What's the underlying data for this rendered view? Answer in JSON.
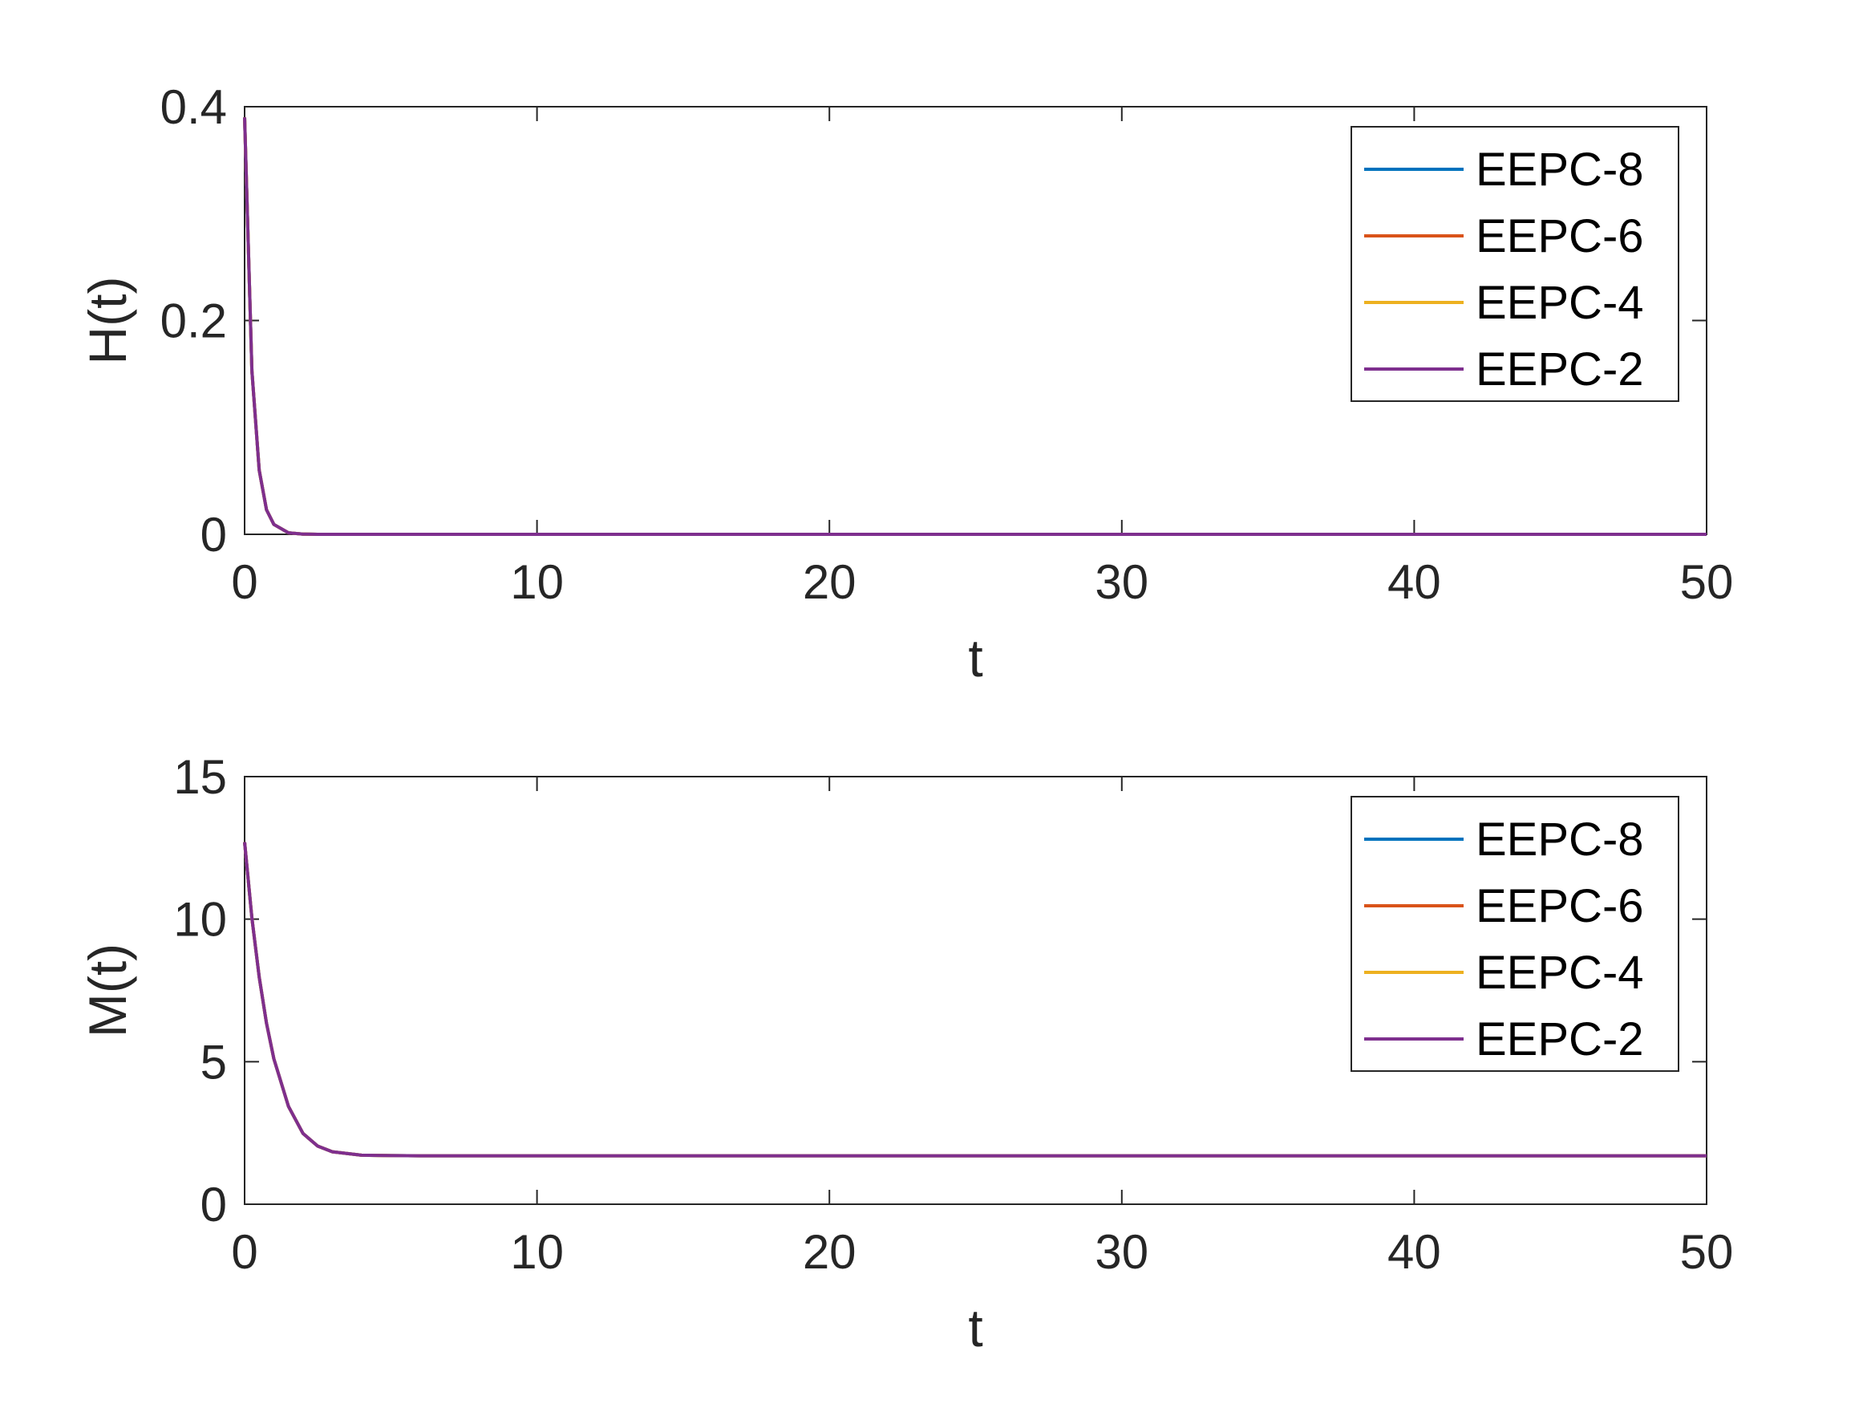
{
  "chart_data": [
    {
      "type": "line",
      "ylabel": "H(t)",
      "xlabel": "t",
      "xlim": [
        0,
        50
      ],
      "ylim": [
        0,
        0.4
      ],
      "xticks": [
        "0",
        "10",
        "20",
        "30",
        "40",
        "50"
      ],
      "yticks": [
        "0",
        "0.2",
        "0.4"
      ],
      "grid": false,
      "legend_position": "top-right",
      "series": [
        {
          "name": "EEPC-8",
          "color": "#0072BD",
          "x": [
            0,
            0.25,
            0.5,
            0.75,
            1,
            1.5,
            2,
            2.5,
            3,
            4,
            5,
            7,
            10,
            15,
            20,
            30,
            40,
            50
          ],
          "y": [
            0.39,
            0.153,
            0.06,
            0.023,
            0.0092,
            0.0014,
            0.0002,
            3e-05,
            0,
            0,
            0,
            0,
            0,
            0,
            0,
            0,
            0,
            0
          ]
        },
        {
          "name": "EEPC-6",
          "color": "#D95319",
          "x": [
            0,
            0.25,
            0.5,
            0.75,
            1,
            1.5,
            2,
            2.5,
            3,
            4,
            5,
            7,
            10,
            15,
            20,
            30,
            40,
            50
          ],
          "y": [
            0.39,
            0.153,
            0.06,
            0.023,
            0.0092,
            0.0014,
            0.0002,
            3e-05,
            0,
            0,
            0,
            0,
            0,
            0,
            0,
            0,
            0,
            0
          ]
        },
        {
          "name": "EEPC-4",
          "color": "#EDB120",
          "x": [
            0,
            0.25,
            0.5,
            0.75,
            1,
            1.5,
            2,
            2.5,
            3,
            4,
            5,
            7,
            10,
            15,
            20,
            30,
            40,
            50
          ],
          "y": [
            0.39,
            0.153,
            0.06,
            0.023,
            0.0092,
            0.0014,
            0.0002,
            3e-05,
            0,
            0,
            0,
            0,
            0,
            0,
            0,
            0,
            0,
            0
          ]
        },
        {
          "name": "EEPC-2",
          "color": "#7E2F8E",
          "x": [
            0,
            0.25,
            0.5,
            0.75,
            1,
            1.5,
            2,
            2.5,
            3,
            4,
            5,
            7,
            10,
            15,
            20,
            30,
            40,
            50
          ],
          "y": [
            0.39,
            0.153,
            0.06,
            0.023,
            0.0092,
            0.0014,
            0.0002,
            3e-05,
            0,
            0,
            0,
            0,
            0,
            0,
            0,
            0,
            0,
            0
          ]
        }
      ]
    },
    {
      "type": "line",
      "ylabel": "M(t)",
      "xlabel": "t",
      "xlim": [
        0,
        50
      ],
      "ylim": [
        0,
        15
      ],
      "xticks": [
        "0",
        "10",
        "20",
        "30",
        "40",
        "50"
      ],
      "yticks": [
        "0",
        "5",
        "10",
        "15"
      ],
      "grid": false,
      "legend_position": "top-right",
      "series": [
        {
          "name": "EEPC-8",
          "color": "#0072BD",
          "x": [
            0,
            0.25,
            0.5,
            0.75,
            1,
            1.5,
            2,
            2.5,
            3,
            4,
            5,
            6,
            8,
            10,
            20,
            30,
            40,
            50
          ],
          "y": [
            12.7,
            10.04,
            7.97,
            6.35,
            5.1,
            3.43,
            2.48,
            2.04,
            1.84,
            1.72,
            1.705,
            1.701,
            1.7,
            1.7,
            1.7,
            1.7,
            1.7,
            1.7
          ]
        },
        {
          "name": "EEPC-6",
          "color": "#D95319",
          "x": [
            0,
            0.25,
            0.5,
            0.75,
            1,
            1.5,
            2,
            2.5,
            3,
            4,
            5,
            6,
            8,
            10,
            20,
            30,
            40,
            50
          ],
          "y": [
            12.7,
            10.04,
            7.97,
            6.35,
            5.1,
            3.43,
            2.48,
            2.04,
            1.84,
            1.72,
            1.705,
            1.701,
            1.7,
            1.7,
            1.7,
            1.7,
            1.7,
            1.7
          ]
        },
        {
          "name": "EEPC-4",
          "color": "#EDB120",
          "x": [
            0,
            0.25,
            0.5,
            0.75,
            1,
            1.5,
            2,
            2.5,
            3,
            4,
            5,
            6,
            8,
            10,
            20,
            30,
            40,
            50
          ],
          "y": [
            12.7,
            10.04,
            7.97,
            6.35,
            5.1,
            3.43,
            2.48,
            2.04,
            1.84,
            1.72,
            1.705,
            1.701,
            1.7,
            1.7,
            1.7,
            1.7,
            1.7,
            1.7
          ]
        },
        {
          "name": "EEPC-2",
          "color": "#7E2F8E",
          "x": [
            0,
            0.25,
            0.5,
            0.75,
            1,
            1.5,
            2,
            2.5,
            3,
            4,
            5,
            6,
            8,
            10,
            20,
            30,
            40,
            50
          ],
          "y": [
            12.7,
            10.04,
            7.97,
            6.35,
            5.1,
            3.43,
            2.48,
            2.04,
            1.84,
            1.72,
            1.705,
            1.701,
            1.7,
            1.7,
            1.7,
            1.7,
            1.7,
            1.7
          ]
        }
      ]
    }
  ]
}
